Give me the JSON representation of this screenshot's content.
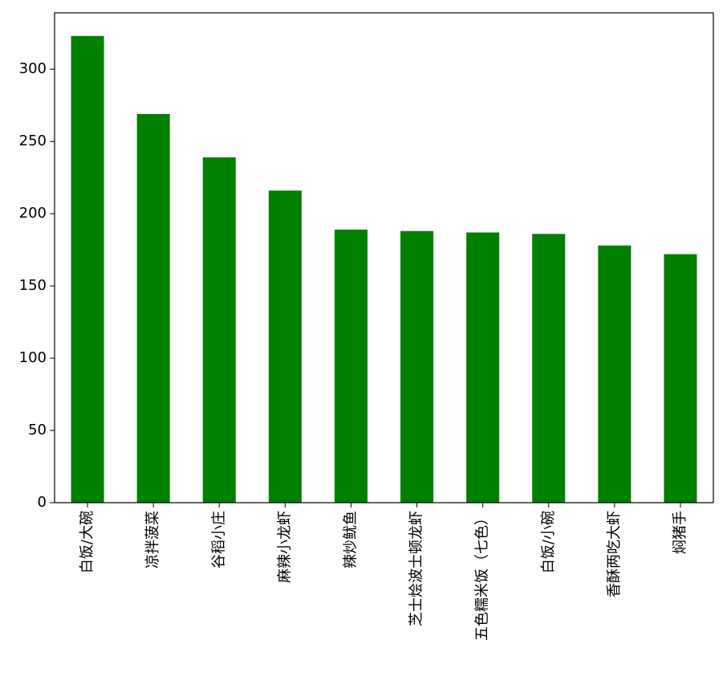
{
  "chart_data": {
    "type": "bar",
    "categories": [
      "白饭/大碗",
      "凉拌菠菜",
      "谷稻小庄",
      "麻辣小龙虾",
      "辣炒鱿鱼",
      "芝士烩波士顿龙虾",
      "五色糯米饭（七色）",
      "白饭/小碗",
      "香酥两吃大虾",
      "焖猪手"
    ],
    "values": [
      323,
      269,
      239,
      216,
      189,
      188,
      187,
      186,
      178,
      172
    ],
    "color": "#008000",
    "ylim": [
      0,
      339
    ],
    "yticks": [
      0,
      50,
      100,
      150,
      200,
      250,
      300
    ],
    "grid": false
  }
}
